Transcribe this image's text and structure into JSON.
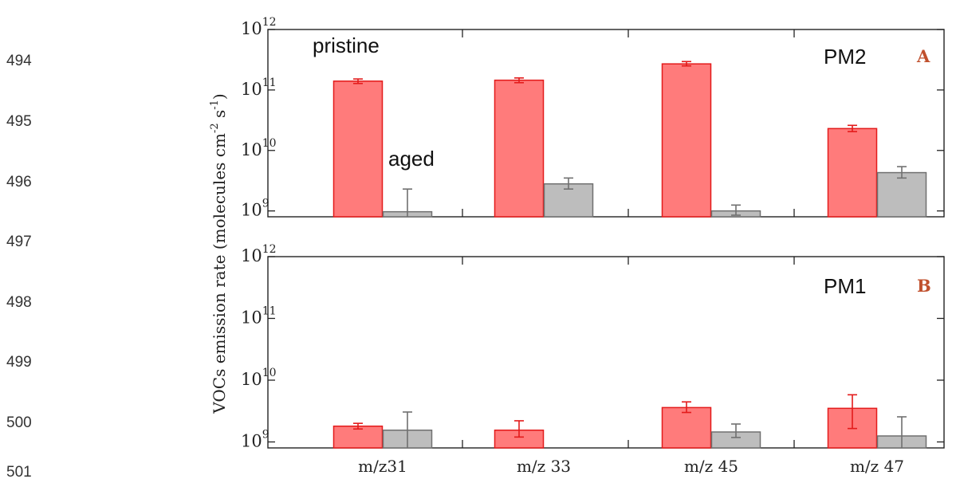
{
  "line_numbers": [
    "494",
    "495",
    "496",
    "497",
    "498",
    "499",
    "500",
    "501"
  ],
  "ylabel": "VOCs emission rate (molecules cm",
  "ylabel_exp1": "-2",
  "ylabel_mid": " s",
  "ylabel_exp2": "-1",
  "ylabel_end": ")",
  "colors": {
    "pristine": "#ff7b7b",
    "pristine_edge": "#e31b1b",
    "aged": "#bdbdbd",
    "aged_edge": "#707070",
    "panel_letter": "#c0502d"
  },
  "chart_data": [
    {
      "type": "bar",
      "panel_label": "A",
      "panel_title": "PM2",
      "yscale": "log",
      "ylim": [
        800000000,
        1000000000000
      ],
      "ytick_values": [
        1000000000,
        10000000000,
        100000000000,
        1000000000000
      ],
      "ytick_labels": [
        {
          "base": "10",
          "exp": "9"
        },
        {
          "base": "10",
          "exp": "10"
        },
        {
          "base": "10",
          "exp": "11"
        },
        {
          "base": "10",
          "exp": "12"
        }
      ],
      "annotations": [
        "pristine",
        "aged"
      ],
      "categories": [
        "m/z31",
        "m/z 33",
        "m/z 45",
        "m/z 47"
      ],
      "series": [
        {
          "name": "pristine",
          "values": [
            140000000000,
            145000000000,
            270000000000,
            23000000000
          ],
          "err_low": [
            128000000000,
            132000000000,
            250000000000,
            20500000000
          ],
          "err_high": [
            152000000000,
            158000000000,
            295000000000,
            26000000000
          ]
        },
        {
          "name": "aged",
          "values": [
            970000000,
            2800000000,
            1000000000,
            4300000000
          ],
          "err_low": [
            780000000,
            2300000000,
            850000000,
            3500000000
          ],
          "err_high": [
            2300000000,
            3500000000,
            1250000000,
            5400000000
          ]
        }
      ]
    },
    {
      "type": "bar",
      "panel_label": "B",
      "panel_title": "PM1",
      "yscale": "log",
      "ylim": [
        800000000,
        1000000000000
      ],
      "ytick_values": [
        1000000000,
        10000000000,
        100000000000,
        1000000000000
      ],
      "ytick_labels": [
        {
          "base": "10",
          "exp": "9"
        },
        {
          "base": "10",
          "exp": "10"
        },
        {
          "base": "10",
          "exp": "11"
        },
        {
          "base": "10",
          "exp": "12"
        }
      ],
      "categories": [
        "m/z31",
        "m/z 33",
        "m/z 45",
        "m/z 47"
      ],
      "series": [
        {
          "name": "pristine",
          "values": [
            1800000000,
            1550000000,
            3600000000,
            3500000000
          ],
          "err_low": [
            1620000000,
            1200000000,
            3000000000,
            1650000000
          ],
          "err_high": [
            2000000000,
            2200000000,
            4450000000,
            5800000000
          ]
        },
        {
          "name": "aged",
          "values": [
            1550000000,
            null,
            1450000000,
            1250000000
          ],
          "err_low": [
            800000000,
            null,
            1180000000,
            800000000
          ],
          "err_high": [
            3050000000,
            null,
            1950000000,
            2550000000
          ]
        }
      ]
    }
  ]
}
